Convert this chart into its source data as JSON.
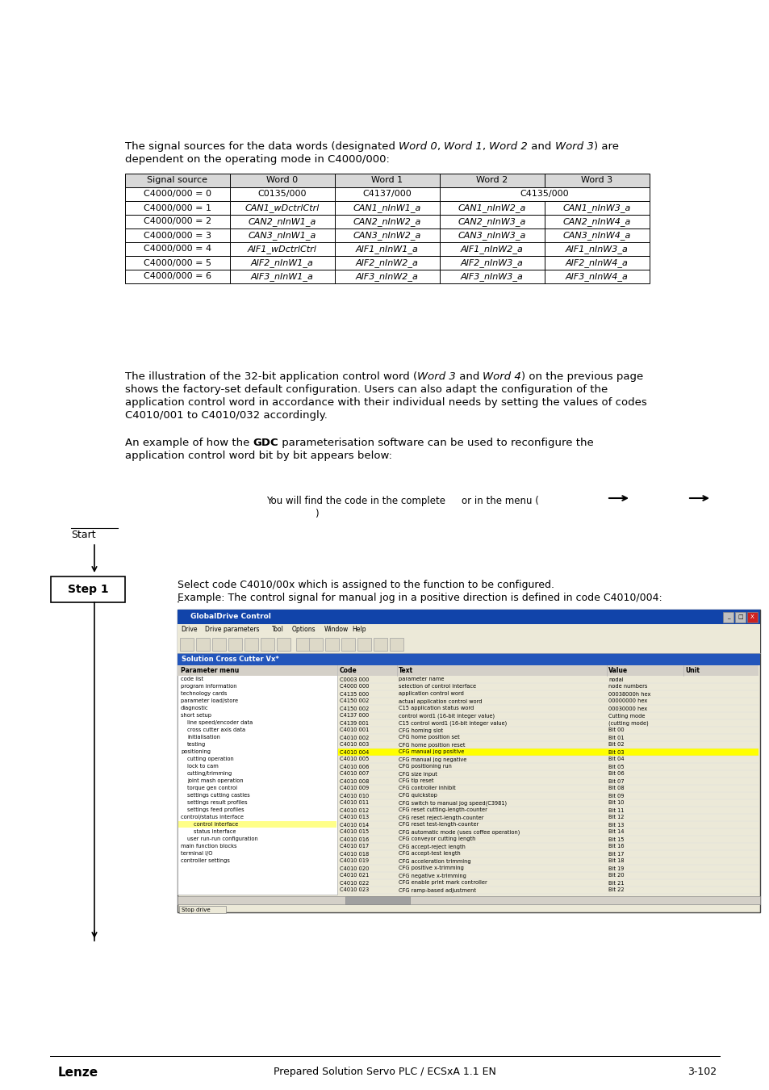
{
  "page_bg": "#ffffff",
  "para1_parts": [
    [
      "The signal sources for the data words (designated ",
      false
    ],
    [
      "Word 0",
      true
    ],
    [
      ", ",
      false
    ],
    [
      "Word 1",
      true
    ],
    [
      ", ",
      false
    ],
    [
      "Word 2",
      true
    ],
    [
      " and ",
      false
    ],
    [
      "Word 3",
      true
    ],
    [
      ") are",
      false
    ]
  ],
  "para1_line2": "dependent on the operating mode in C4000/000:",
  "table_headers": [
    "Signal source",
    "Word 0",
    "Word 1",
    "Word 2",
    "Word 3"
  ],
  "table_rows": [
    [
      "C4000/000 = 0",
      "C0135/000",
      "C4137/000",
      "C4135/000",
      ""
    ],
    [
      "C4000/000 = 1",
      "CAN1_wDctrlCtrl",
      "CAN1_nInW1_a",
      "CAN1_nInW2_a",
      "CAN1_nInW3_a"
    ],
    [
      "C4000/000 = 2",
      "CAN2_nInW1_a",
      "CAN2_nInW2_a",
      "CAN2_nInW3_a",
      "CAN2_nInW4_a"
    ],
    [
      "C4000/000 = 3",
      "CAN3_nInW1_a",
      "CAN3_nInW2_a",
      "CAN3_nInW3_a",
      "CAN3_nInW4_a"
    ],
    [
      "C4000/000 = 4",
      "AIF1_wDctrlCtrl",
      "AIF1_nInW1_a",
      "AIF1_nInW2_a",
      "AIF1_nInW3_a"
    ],
    [
      "C4000/000 = 5",
      "AIF2_nInW1_a",
      "AIF2_nInW2_a",
      "AIF2_nInW3_a",
      "AIF2_nInW4_a"
    ],
    [
      "C4000/000 = 6",
      "AIF3_nInW1_a",
      "AIF3_nInW2_a",
      "AIF3_nInW3_a",
      "AIF3_nInW4_a"
    ]
  ],
  "para2_lines": [
    [
      [
        "The illustration of the 32-bit application control word (",
        false
      ],
      [
        "Word 3",
        true
      ],
      [
        " and ",
        false
      ],
      [
        "Word 4",
        true
      ],
      [
        ") on the previous page",
        false
      ]
    ],
    [
      [
        "shows the factory-set default configuration. Users can also adapt the configuration of the",
        false
      ]
    ],
    [
      [
        "application control word in accordance with their individual needs by setting the values of codes",
        false
      ]
    ],
    [
      [
        "C4010/001 to C4010/032 accordingly.",
        false
      ]
    ]
  ],
  "para3_l1_parts": [
    [
      "An example of how the ",
      false
    ],
    [
      "GDC",
      "bold"
    ],
    [
      " parameterisation software can be used to reconfigure the",
      false
    ]
  ],
  "para3_l2": "application control word bit by bit appears below:",
  "find_code_text": "You will find the code in the complete",
  "or_in_menu": "or in the menu (",
  "paren_close": ")",
  "start_label": "Start",
  "step1_label": "Step 1",
  "step1_text1": "Select code C4010/00x which is assigned to the function to be configured.",
  "step1_text2_prefix": "Example",
  "step1_text2_rest": ": The control signal for manual jog in a positive direction is defined in code C4010/004:",
  "footer_lenze": "Lenze",
  "footer_center": "Prepared Solution Servo PLC / ECSxA 1.1 EN",
  "footer_right": "3-102",
  "table_data": [
    [
      "C0003 000",
      "parameter name",
      "nodal",
      ""
    ],
    [
      "C4000 000",
      "selection of control interface",
      "node numbers",
      ""
    ],
    [
      "C4135 000",
      "application control word",
      "00038000h hex",
      ""
    ],
    [
      "C4150 002",
      "actual application control word",
      "00000000 hex",
      ""
    ],
    [
      "C4150 002",
      "C15 application status word",
      "00030000 hex",
      ""
    ],
    [
      "C4137 000",
      "control word1 (16-bit integer value)",
      "Cutting mode",
      ""
    ],
    [
      "C4139 001",
      "C15 control word1 (16-bit integer value)",
      "(cutting mode)",
      ""
    ],
    [
      "C4010 001",
      "CFG homing slot",
      "Bit 00",
      ""
    ],
    [
      "C4010 002",
      "CFG home position set",
      "Bit 01",
      ""
    ],
    [
      "C4010 003",
      "CFG home position reset",
      "Bit 02",
      ""
    ],
    [
      "C4010 004",
      "CFG manual jog positive",
      "Bit 03",
      ""
    ],
    [
      "C4010 005",
      "CFG manual jog negative",
      "Bit 04",
      ""
    ],
    [
      "C4010 006",
      "CFG positioning run",
      "Bit 05",
      ""
    ],
    [
      "C4010 007",
      "CFG size input",
      "Bit 06",
      ""
    ],
    [
      "C4010 008",
      "CFG tip reset",
      "Bit 07",
      ""
    ],
    [
      "C4010 009",
      "CFG controller inhibit",
      "Bit 08",
      ""
    ],
    [
      "C4010 010",
      "CFG quickstop",
      "Bit 09",
      ""
    ],
    [
      "C4010 011",
      "CFG switch to manual jog speed(C3981)",
      "Bit 10",
      ""
    ],
    [
      "C4010 012",
      "CFG reset cutting-length-counter",
      "Bit 11",
      ""
    ],
    [
      "C4010 013",
      "CFG reset reject-length-counter",
      "Bit 12",
      ""
    ],
    [
      "C4010 014",
      "CFG reset test-length-counter",
      "Bit 13",
      ""
    ],
    [
      "C4010 015",
      "CFG automatic mode (uses coffee operation)",
      "Bit 14",
      ""
    ],
    [
      "C4010 016",
      "CFG conveyor cutting length",
      "Bit 15",
      ""
    ],
    [
      "C4010 017",
      "CFG accept-reject length",
      "Bit 16",
      ""
    ],
    [
      "C4010 018",
      "CFG accept-test length",
      "Bit 17",
      ""
    ],
    [
      "C4010 019",
      "CFG acceleration trimming",
      "Bit 18",
      ""
    ],
    [
      "C4010 020",
      "CFG positive x-trimming",
      "Bit 19",
      ""
    ],
    [
      "C4010 021",
      "CFG negative x-trimming",
      "Bit 20",
      ""
    ],
    [
      "C4010 022",
      "CFG enable print mark controller",
      "Bit 21",
      ""
    ],
    [
      "C4010 023",
      "CFG ramp-based adjustment",
      "Bit 22",
      ""
    ]
  ],
  "highlight_row": "C4010 004",
  "tree_items": [
    [
      0,
      "code list"
    ],
    [
      0,
      "program information"
    ],
    [
      0,
      "technology cards"
    ],
    [
      0,
      "parameter load/store"
    ],
    [
      0,
      "diagnostic"
    ],
    [
      0,
      "short setup"
    ],
    [
      1,
      "line speed/encoder data"
    ],
    [
      1,
      "cross cutter axis data"
    ],
    [
      1,
      "initialisation"
    ],
    [
      1,
      "testing"
    ],
    [
      0,
      "positioning"
    ],
    [
      1,
      "cutting operation"
    ],
    [
      1,
      "lock to cam"
    ],
    [
      1,
      "cutting/trimming"
    ],
    [
      1,
      "joint mash operation"
    ],
    [
      1,
      "torque gen control"
    ],
    [
      1,
      "settings cutting castles"
    ],
    [
      1,
      "settings result profiles"
    ],
    [
      1,
      "settings feed profiles"
    ],
    [
      0,
      "control/status interface"
    ],
    [
      2,
      "control interface"
    ],
    [
      2,
      "status interface"
    ],
    [
      1,
      "user run-run configuration"
    ],
    [
      0,
      "main function blocks"
    ],
    [
      0,
      "terminal I/O"
    ],
    [
      0,
      "controller settings"
    ]
  ],
  "highlighted_tree_item": "control interface"
}
